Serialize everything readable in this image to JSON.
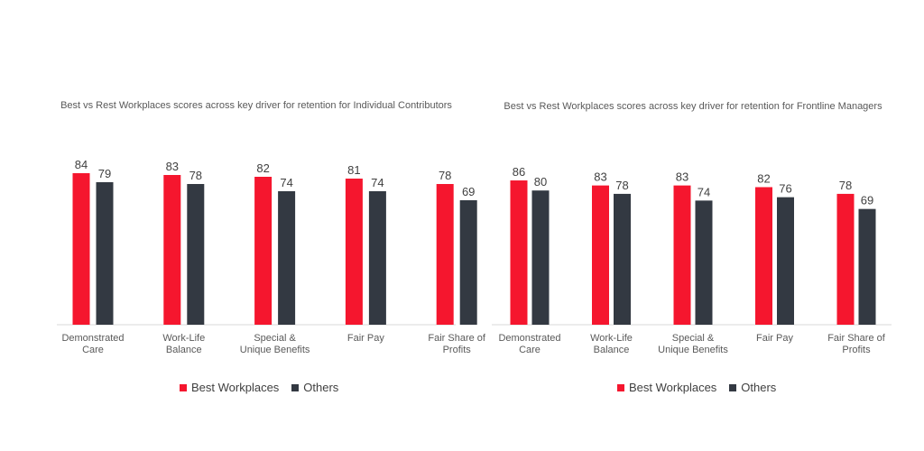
{
  "colors": {
    "best": "#f5162e",
    "others": "#333942",
    "axis": "#d9d9d9"
  },
  "legend": {
    "best_label": "Best Workplaces",
    "others_label": "Others"
  },
  "chart_data": [
    {
      "type": "bar",
      "title": "Best vs Rest Workplaces scores across key driver for retention for Individual Contributors",
      "categories": [
        [
          "Demonstrated",
          "Care"
        ],
        [
          "Work-Life",
          "Balance"
        ],
        [
          "Special &",
          "Unique Benefits"
        ],
        [
          "Fair Pay"
        ],
        [
          "Fair Share of",
          "Profits"
        ]
      ],
      "series": [
        {
          "name": "Best Workplaces",
          "values": [
            84,
            83,
            82,
            81,
            78
          ]
        },
        {
          "name": "Others",
          "values": [
            79,
            78,
            74,
            74,
            69
          ]
        }
      ],
      "ylim": [
        0,
        100
      ],
      "legend_position": "bottom",
      "grid": false
    },
    {
      "type": "bar",
      "title": "Best vs Rest Workplaces scores across key driver for retention for Frontline Managers",
      "categories": [
        [
          "Demonstrated",
          "Care"
        ],
        [
          "Work-Life",
          "Balance"
        ],
        [
          "Special &",
          "Unique Benefits"
        ],
        [
          "Fair Pay"
        ],
        [
          "Fair Share of",
          "Profits"
        ]
      ],
      "series": [
        {
          "name": "Best Workplaces",
          "values": [
            86,
            83,
            83,
            82,
            78
          ]
        },
        {
          "name": "Others",
          "values": [
            80,
            78,
            74,
            76,
            69
          ]
        }
      ],
      "ylim": [
        0,
        100
      ],
      "legend_position": "bottom",
      "grid": false
    }
  ]
}
